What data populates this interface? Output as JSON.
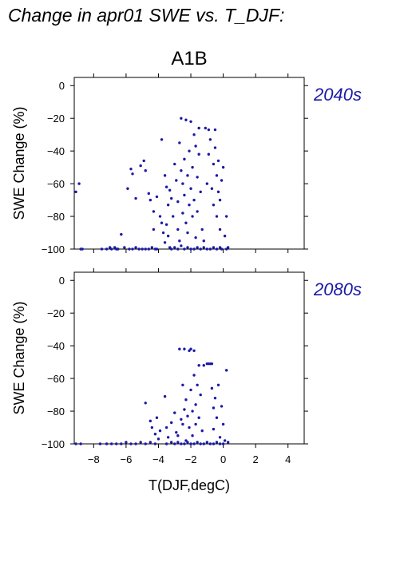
{
  "page": {
    "title": "Change in apr01 SWE vs. T_DJF:",
    "scenario": "A1B",
    "xlabel": "T(DJF,degC)"
  },
  "chart_data": [
    {
      "type": "scatter",
      "title": "A1B",
      "period": "2040s",
      "ylabel": "SWE Change (%)",
      "xlabel": "",
      "xlim": [
        -9.2,
        5
      ],
      "ylim": [
        -100,
        5
      ],
      "xticks": [
        -8,
        -6,
        -4,
        -2,
        0,
        2,
        4
      ],
      "yticks": [
        0,
        -20,
        -40,
        -60,
        -80,
        -100
      ],
      "color": "#1a1aa6",
      "points": [
        [
          -9.1,
          -65
        ],
        [
          -8.9,
          -60
        ],
        [
          -8.8,
          -100
        ],
        [
          -8.7,
          -100
        ],
        [
          -7.5,
          -100
        ],
        [
          -7.2,
          -100
        ],
        [
          -7.0,
          -99
        ],
        [
          -6.9,
          -100
        ],
        [
          -6.7,
          -99
        ],
        [
          -6.6,
          -100
        ],
        [
          -6.5,
          -100
        ],
        [
          -6.3,
          -91
        ],
        [
          -6.1,
          -99
        ],
        [
          -5.8,
          -100
        ],
        [
          -5.6,
          -100
        ],
        [
          -5.4,
          -99
        ],
        [
          -5.2,
          -100
        ],
        [
          -5.0,
          -100
        ],
        [
          -4.8,
          -100
        ],
        [
          -4.6,
          -100
        ],
        [
          -4.4,
          -99
        ],
        [
          -4.2,
          -100
        ],
        [
          -5.9,
          -63
        ],
        [
          -5.7,
          -51
        ],
        [
          -5.6,
          -54
        ],
        [
          -5.4,
          -69
        ],
        [
          -5.1,
          -49
        ],
        [
          -4.9,
          -46
        ],
        [
          -4.8,
          -52
        ],
        [
          -4.6,
          -66
        ],
        [
          -4.5,
          -70
        ],
        [
          -4.3,
          -77
        ],
        [
          -4.3,
          -88
        ],
        [
          -4.1,
          -68
        ],
        [
          -4.1,
          -100
        ],
        [
          -3.9,
          -80
        ],
        [
          -3.8,
          -84
        ],
        [
          -3.7,
          -90
        ],
        [
          -3.6,
          -96
        ],
        [
          -3.5,
          -85
        ],
        [
          -3.4,
          -92
        ],
        [
          -3.3,
          -99
        ],
        [
          -3.8,
          -33
        ],
        [
          -3.6,
          -55
        ],
        [
          -3.5,
          -62
        ],
        [
          -3.4,
          -73
        ],
        [
          -3.3,
          -64
        ],
        [
          -3.2,
          -69
        ],
        [
          -3.1,
          -80
        ],
        [
          -3.0,
          -48
        ],
        [
          -2.9,
          -58
        ],
        [
          -2.8,
          -71
        ],
        [
          -2.8,
          -88
        ],
        [
          -2.7,
          -35
        ],
        [
          -2.7,
          -95
        ],
        [
          -2.6,
          -52
        ],
        [
          -2.6,
          -20
        ],
        [
          -2.5,
          -60
        ],
        [
          -2.5,
          -78
        ],
        [
          -2.4,
          -45
        ],
        [
          -2.4,
          -67
        ],
        [
          -2.3,
          -21
        ],
        [
          -2.3,
          -84
        ],
        [
          -2.2,
          -55
        ],
        [
          -2.2,
          -90
        ],
        [
          -2.1,
          -40
        ],
        [
          -2.1,
          -73
        ],
        [
          -2.0,
          -22
        ],
        [
          -2.0,
          -63
        ],
        [
          -1.9,
          -50
        ],
        [
          -1.9,
          -80
        ],
        [
          -1.8,
          -30
        ],
        [
          -1.8,
          -70
        ],
        [
          -1.7,
          -37
        ],
        [
          -1.7,
          -93
        ],
        [
          -1.6,
          -56
        ],
        [
          -1.6,
          -77
        ],
        [
          -1.5,
          -26
        ],
        [
          -1.5,
          -42
        ],
        [
          -1.4,
          -65
        ],
        [
          -1.3,
          -88
        ],
        [
          -1.2,
          -95
        ],
        [
          -1.1,
          -26
        ],
        [
          -1.0,
          -60
        ],
        [
          -0.9,
          -27
        ],
        [
          -0.9,
          -42
        ],
        [
          -0.8,
          -33
        ],
        [
          -0.7,
          -63
        ],
        [
          -0.6,
          -48
        ],
        [
          -0.6,
          -73
        ],
        [
          -0.5,
          -27
        ],
        [
          -0.5,
          -38
        ],
        [
          -0.4,
          -55
        ],
        [
          -0.4,
          -80
        ],
        [
          -0.3,
          -46
        ],
        [
          -0.3,
          -65
        ],
        [
          -0.2,
          -70
        ],
        [
          -0.2,
          -88
        ],
        [
          -0.1,
          -58
        ],
        [
          -0.1,
          -100
        ],
        [
          0.0,
          -50
        ],
        [
          0.1,
          -92
        ],
        [
          0.2,
          -80
        ],
        [
          0.2,
          -100
        ],
        [
          0.3,
          -99
        ],
        [
          -3.2,
          -100
        ],
        [
          -3.0,
          -99
        ],
        [
          -2.8,
          -100
        ],
        [
          -2.6,
          -98
        ],
        [
          -2.4,
          -100
        ],
        [
          -2.2,
          -99
        ],
        [
          -2.0,
          -100
        ],
        [
          -1.8,
          -100
        ],
        [
          -1.6,
          -99
        ],
        [
          -1.4,
          -100
        ],
        [
          -1.2,
          -99
        ],
        [
          -1.0,
          -100
        ],
        [
          -0.8,
          -100
        ],
        [
          -0.6,
          -99
        ],
        [
          -0.4,
          -100
        ],
        [
          -0.2,
          -99
        ]
      ]
    },
    {
      "type": "scatter",
      "title": "",
      "period": "2080s",
      "ylabel": "SWE Change (%)",
      "xlabel": "T(DJF,degC)",
      "xlim": [
        -9.2,
        5
      ],
      "ylim": [
        -100,
        5
      ],
      "xticks": [
        -8,
        -6,
        -4,
        -2,
        0,
        2,
        4
      ],
      "yticks": [
        0,
        -20,
        -40,
        -60,
        -80,
        -100
      ],
      "color": "#1a1aa6",
      "points": [
        [
          -9.1,
          -100
        ],
        [
          -8.8,
          -100
        ],
        [
          -7.6,
          -100
        ],
        [
          -7.2,
          -100
        ],
        [
          -6.9,
          -100
        ],
        [
          -6.6,
          -100
        ],
        [
          -6.3,
          -100
        ],
        [
          -6.0,
          -99
        ],
        [
          -5.7,
          -100
        ],
        [
          -5.4,
          -100
        ],
        [
          -5.1,
          -99
        ],
        [
          -4.8,
          -100
        ],
        [
          -4.5,
          -99
        ],
        [
          -4.2,
          -100
        ],
        [
          -4.8,
          -75
        ],
        [
          -4.5,
          -86
        ],
        [
          -4.4,
          -90
        ],
        [
          -4.2,
          -94
        ],
        [
          -4.1,
          -84
        ],
        [
          -4.0,
          -97
        ],
        [
          -3.9,
          -92
        ],
        [
          -3.6,
          -71
        ],
        [
          -3.5,
          -90
        ],
        [
          -3.4,
          -96
        ],
        [
          -3.2,
          -87
        ],
        [
          -3.0,
          -81
        ],
        [
          -2.9,
          -93
        ],
        [
          -2.8,
          -95
        ],
        [
          -2.7,
          -42
        ],
        [
          -2.6,
          -85
        ],
        [
          -2.5,
          -64
        ],
        [
          -2.5,
          -88
        ],
        [
          -2.4,
          -42
        ],
        [
          -2.4,
          -79
        ],
        [
          -2.3,
          -73
        ],
        [
          -2.3,
          -98
        ],
        [
          -2.2,
          -83
        ],
        [
          -2.1,
          -43
        ],
        [
          -2.1,
          -90
        ],
        [
          -2.0,
          -42
        ],
        [
          -2.0,
          -67
        ],
        [
          -1.9,
          -80
        ],
        [
          -1.9,
          -95
        ],
        [
          -1.8,
          -43
        ],
        [
          -1.8,
          -58
        ],
        [
          -1.7,
          -76
        ],
        [
          -1.7,
          -88
        ],
        [
          -1.6,
          -64
        ],
        [
          -1.5,
          -52
        ],
        [
          -1.5,
          -84
        ],
        [
          -1.4,
          -70
        ],
        [
          -1.3,
          -92
        ],
        [
          -1.2,
          -52
        ],
        [
          -1.0,
          -51
        ],
        [
          -0.9,
          -51
        ],
        [
          -0.8,
          -51
        ],
        [
          -0.7,
          -51
        ],
        [
          -0.7,
          -66
        ],
        [
          -0.6,
          -78
        ],
        [
          -0.6,
          -91
        ],
        [
          -0.5,
          -72
        ],
        [
          -0.4,
          -84
        ],
        [
          -0.3,
          -64
        ],
        [
          -0.2,
          -96
        ],
        [
          -0.1,
          -77
        ],
        [
          0.0,
          -88
        ],
        [
          0.1,
          -98
        ],
        [
          0.2,
          -55
        ],
        [
          0.3,
          -99
        ],
        [
          -3.5,
          -100
        ],
        [
          -3.2,
          -99
        ],
        [
          -3.0,
          -100
        ],
        [
          -2.8,
          -99
        ],
        [
          -2.6,
          -100
        ],
        [
          -2.4,
          -100
        ],
        [
          -2.2,
          -99
        ],
        [
          -2.0,
          -100
        ],
        [
          -1.8,
          -100
        ],
        [
          -1.6,
          -99
        ],
        [
          -1.4,
          -100
        ],
        [
          -1.2,
          -100
        ],
        [
          -1.0,
          -99
        ],
        [
          -0.8,
          -100
        ],
        [
          -0.6,
          -100
        ],
        [
          -0.4,
          -99
        ],
        [
          -0.2,
          -100
        ],
        [
          0.0,
          -100
        ]
      ]
    }
  ]
}
